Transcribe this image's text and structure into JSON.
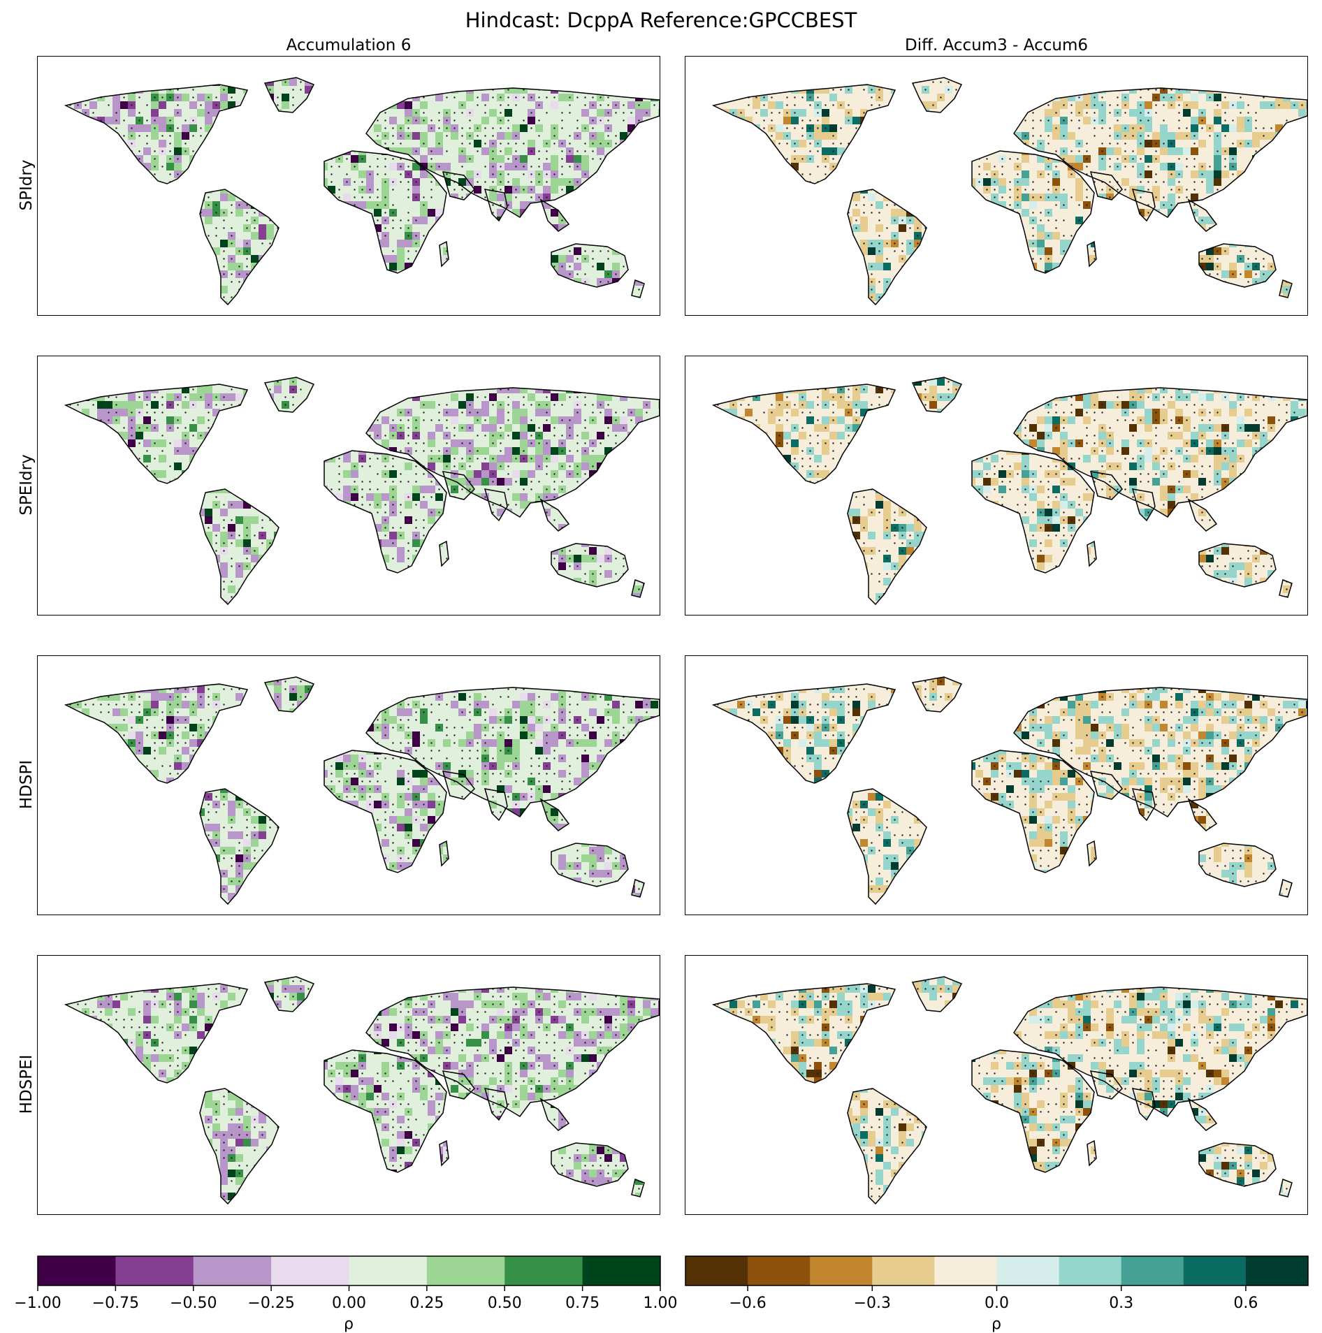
{
  "figure": {
    "title": "Hindcast: DcppA Reference:GPCCBEST"
  },
  "columns": [
    "Accumulation 6",
    "Diff. Accum3 - Accum6"
  ],
  "rows": [
    "SPIdry",
    "SPEIdry",
    "HDSPI",
    "HDSPEI"
  ],
  "chart_data": {
    "type": "heatmap",
    "title": "Hindcast: DcppA Reference:GPCCBEST",
    "panels_grid": {
      "rows": 4,
      "cols": 2
    },
    "variable": "ρ",
    "colorbars": [
      {
        "column": "Accumulation 6",
        "label": "ρ",
        "range": [
          -1.0,
          1.0
        ],
        "bounds": [
          -1.0,
          -0.75,
          -0.5,
          -0.25,
          0.0,
          0.25,
          0.5,
          0.75,
          1.0
        ],
        "tick_labels": [
          "−1.00",
          "−0.75",
          "−0.50",
          "−0.25",
          "0.00",
          "0.25",
          "0.50",
          "0.75",
          "1.00"
        ],
        "colors": [
          "#3f0048",
          "#843f93",
          "#b996c9",
          "#e8dbed",
          "#e0f0dc",
          "#9dd595",
          "#379047",
          "#00441b"
        ]
      },
      {
        "column": "Diff. Accum3 - Accum6",
        "label": "ρ",
        "range": [
          -0.75,
          0.75
        ],
        "bounds": [
          -0.75,
          -0.6,
          -0.45,
          -0.3,
          -0.15,
          0.0,
          0.15,
          0.3,
          0.45,
          0.6,
          0.75
        ],
        "tick_labels": [
          "−0.6",
          "−0.3",
          "0.0",
          "0.3",
          "0.6"
        ],
        "tick_values": [
          -0.6,
          -0.3,
          0.0,
          0.3,
          0.6
        ],
        "colors": [
          "#543005",
          "#8c510a",
          "#c2862f",
          "#e7cc90",
          "#f6eddb",
          "#d6eeeb",
          "#95d5cb",
          "#45a095",
          "#0b6c64",
          "#003c30"
        ]
      }
    ],
    "regions": [
      "North America",
      "Greenland",
      "South America",
      "Europe",
      "Africa",
      "Asia",
      "Australia"
    ]
  }
}
